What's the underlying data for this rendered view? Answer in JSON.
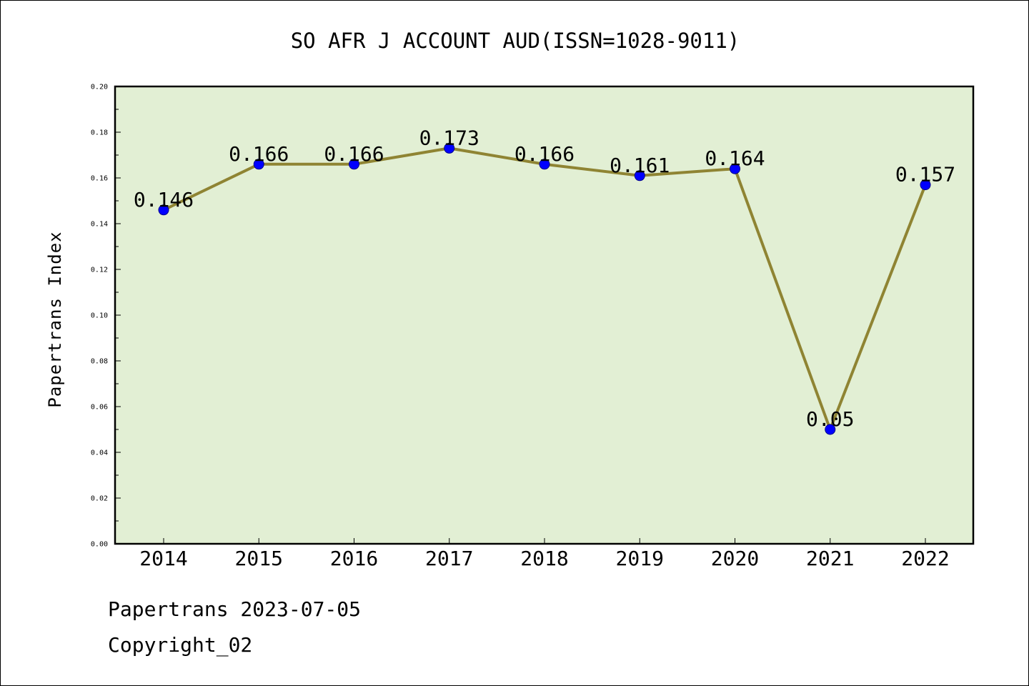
{
  "chart_data": {
    "type": "line",
    "title": "SO AFR J ACCOUNT AUD(ISSN=1028-9011)",
    "xlabel": "",
    "ylabel": "Papertrans Index",
    "categories": [
      "2014",
      "2015",
      "2016",
      "2017",
      "2018",
      "2019",
      "2020",
      "2021",
      "2022"
    ],
    "values": [
      0.146,
      0.166,
      0.166,
      0.173,
      0.166,
      0.161,
      0.164,
      0.05,
      0.157
    ],
    "data_labels": [
      "0.146",
      "0.166",
      "0.166",
      "0.173",
      "0.166",
      "0.161",
      "0.164",
      "0.05",
      "0.157"
    ],
    "ylim": [
      0,
      0.2
    ],
    "yticks": [
      "0.00",
      "0.02",
      "0.04",
      "0.06",
      "0.08",
      "0.10",
      "0.12",
      "0.14",
      "0.16",
      "0.18",
      "0.20"
    ],
    "grid": false,
    "legend": "none",
    "colors": {
      "plot_background": "#e2efd4",
      "line": "#8f8433",
      "marker": "#0000ff"
    }
  },
  "footer": {
    "line1": "Papertrans 2023-07-05",
    "line2": "Copyright_02"
  }
}
